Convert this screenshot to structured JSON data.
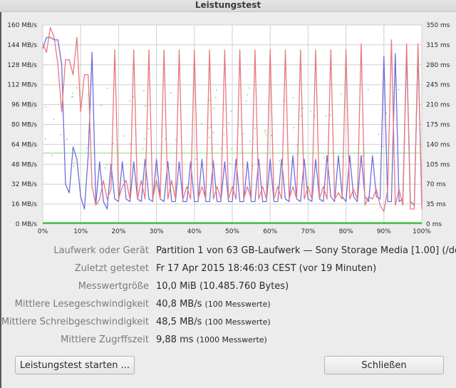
{
  "window": {
    "title": "Leistungstest"
  },
  "chart_data": {
    "type": "line",
    "title": "",
    "xlabel": "",
    "ylabel": "",
    "y_left_ticks": [
      "160 MB/s",
      "144 MB/s",
      "128 MB/s",
      "112 MB/s",
      "96 MB/s",
      "80 MB/s",
      "64 MB/s",
      "48 MB/s",
      "32 MB/s",
      "16 MB/s",
      "0 MB/s"
    ],
    "y_right_ticks": [
      "350 ms",
      "315 ms",
      "280 ms",
      "245 ms",
      "210 ms",
      "175 ms",
      "140 ms",
      "105 ms",
      "70 ms",
      "35 ms",
      "0 ms"
    ],
    "x_ticks": [
      "0%",
      "10%",
      "20%",
      "30%",
      "40%",
      "50%",
      "60%",
      "70%",
      "80%",
      "90%",
      "100%"
    ],
    "xlim": [
      0,
      100
    ],
    "ylim_left": [
      0,
      160
    ],
    "ylim_right": [
      0,
      350
    ],
    "series": [
      {
        "color": "#6d6de0",
        "x": [
          0,
          1,
          2,
          3,
          4,
          5,
          6,
          7,
          8,
          9,
          10,
          11,
          12,
          13,
          14,
          15,
          16,
          17,
          18,
          19,
          20,
          21,
          22,
          23,
          24,
          25,
          26,
          27,
          28,
          29,
          30,
          31,
          32,
          33,
          34,
          35,
          36,
          37,
          38,
          39,
          40,
          41,
          42,
          43,
          44,
          45,
          46,
          47,
          48,
          49,
          50,
          51,
          52,
          53,
          54,
          55,
          56,
          57,
          58,
          59,
          60,
          61,
          62,
          63,
          64,
          65,
          66,
          67,
          68,
          69,
          70,
          71,
          72,
          73,
          74,
          75,
          76,
          77,
          78,
          79,
          80,
          81,
          82,
          83,
          84,
          85,
          86,
          87,
          88,
          89,
          90,
          91,
          92,
          93,
          94,
          95,
          96,
          97,
          98,
          99,
          100
        ],
        "values": [
          141,
          150,
          150,
          148,
          148,
          128,
          32,
          25,
          62,
          52,
          22,
          12,
          55,
          138,
          16,
          50,
          18,
          12,
          48,
          20,
          18,
          50,
          20,
          18,
          50,
          20,
          18,
          52,
          20,
          18,
          52,
          20,
          18,
          50,
          18,
          18,
          50,
          18,
          18,
          50,
          18,
          18,
          52,
          18,
          18,
          50,
          18,
          18,
          50,
          18,
          18,
          52,
          18,
          18,
          50,
          18,
          18,
          52,
          18,
          18,
          52,
          18,
          18,
          52,
          20,
          18,
          55,
          20,
          18,
          52,
          20,
          18,
          52,
          20,
          18,
          55,
          22,
          18,
          55,
          22,
          18,
          55,
          22,
          18,
          55,
          22,
          18,
          55,
          22,
          20,
          135,
          18,
          18,
          137,
          18,
          20,
          138,
          18,
          15,
          138,
          18
        ]
      },
      {
        "color": "#e8787c",
        "x": [
          0,
          1,
          2,
          3,
          4,
          5,
          6,
          7,
          8,
          9,
          10,
          11,
          12,
          13,
          14,
          15,
          16,
          17,
          18,
          19,
          20,
          21,
          22,
          23,
          24,
          25,
          26,
          27,
          28,
          29,
          30,
          31,
          32,
          33,
          34,
          35,
          36,
          37,
          38,
          39,
          40,
          41,
          42,
          43,
          44,
          45,
          46,
          47,
          48,
          49,
          50,
          51,
          52,
          53,
          54,
          55,
          56,
          57,
          58,
          59,
          60,
          61,
          62,
          63,
          64,
          65,
          66,
          67,
          68,
          69,
          70,
          71,
          72,
          73,
          74,
          75,
          76,
          77,
          78,
          79,
          80,
          81,
          82,
          83,
          84,
          85,
          86,
          87,
          88,
          89,
          90,
          91,
          92,
          93,
          94,
          95,
          96,
          97,
          98,
          99,
          100
        ],
        "values": [
          145,
          138,
          158,
          150,
          128,
          90,
          132,
          132,
          120,
          150,
          90,
          120,
          120,
          30,
          15,
          20,
          35,
          20,
          28,
          140,
          20,
          30,
          35,
          20,
          140,
          20,
          35,
          20,
          140,
          20,
          35,
          20,
          140,
          20,
          35,
          20,
          140,
          20,
          30,
          20,
          140,
          20,
          30,
          20,
          140,
          20,
          30,
          20,
          140,
          20,
          30,
          20,
          140,
          20,
          30,
          20,
          140,
          20,
          30,
          20,
          140,
          20,
          30,
          20,
          140,
          20,
          30,
          20,
          140,
          20,
          30,
          20,
          140,
          20,
          30,
          20,
          140,
          20,
          25,
          20,
          140,
          20,
          28,
          20,
          145,
          15,
          22,
          20,
          28,
          15,
          10,
          28,
          148,
          15,
          28,
          15,
          145,
          12,
          12,
          145,
          12
        ]
      },
      {
        "color": "#22bb22",
        "x": [
          0,
          100
        ],
        "values": [
          0.8,
          0.8
        ]
      }
    ]
  },
  "info": {
    "device_label": "Laufwerk oder Gerät",
    "device_value": "Partition 1 von 63 GB-Laufwerk — Sony Storage Media [1.00] (/de...",
    "last_tested_label": "Zuletzt getestet",
    "last_tested_value": "Fr 17 Apr 2015 18:46:03 CEST (vor 19 Minuten)",
    "sample_size_label": "Messwertgröße",
    "sample_size_value": "10,0 MiB (10.485.760 Bytes)",
    "read_label": "Mittlere Lesegeschwindigkeit",
    "read_value": "40,8 MB/s",
    "read_note": "(100 Messwerte)",
    "write_label": "Mittlere Schreibgeschwindigkeit",
    "write_value": "48,5 MB/s",
    "write_note": "(100 Messwerte)",
    "access_label": "Mittlere Zugrffszeit",
    "access_value": "9,88 ms",
    "access_note": "(1000 Messwerte)"
  },
  "buttons": {
    "start_label": "Leistungstest starten ...",
    "close_label": "Schließen"
  }
}
